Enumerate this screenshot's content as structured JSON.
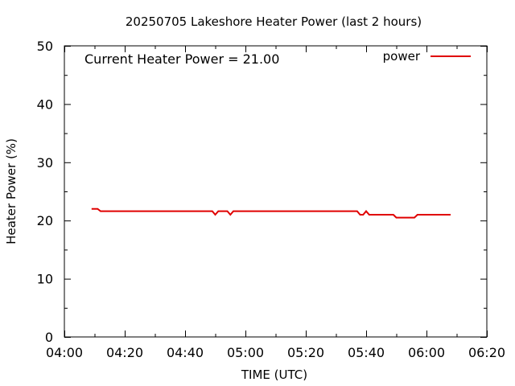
{
  "chart_data": {
    "type": "line",
    "title": "20250705 Lakeshore Heater Power (last 2 hours)",
    "xlabel": "TIME (UTC)",
    "ylabel": "Heater Power (%)",
    "annotation": "Current Heater Power = 21.00",
    "xlim": [
      "04:00",
      "06:20"
    ],
    "ylim": [
      0,
      50
    ],
    "x_ticks": [
      "04:00",
      "04:20",
      "04:40",
      "05:00",
      "05:20",
      "05:40",
      "06:00",
      "06:20"
    ],
    "y_ticks": [
      "0",
      "10",
      "20",
      "30",
      "40",
      "50"
    ],
    "grid": false,
    "legend": "top-right",
    "series": [
      {
        "name": "power",
        "color": "#e00000",
        "points": [
          [
            "04:09",
            22.0
          ],
          [
            "04:11",
            22.0
          ],
          [
            "04:12",
            21.6
          ],
          [
            "04:30",
            21.6
          ],
          [
            "04:49",
            21.6
          ],
          [
            "04:50",
            21.0
          ],
          [
            "04:51",
            21.6
          ],
          [
            "04:54",
            21.6
          ],
          [
            "04:55",
            21.0
          ],
          [
            "04:56",
            21.6
          ],
          [
            "05:20",
            21.6
          ],
          [
            "05:37",
            21.6
          ],
          [
            "05:38",
            21.0
          ],
          [
            "05:39",
            21.0
          ],
          [
            "05:40",
            21.6
          ],
          [
            "05:41",
            21.0
          ],
          [
            "05:49",
            21.0
          ],
          [
            "05:50",
            20.5
          ],
          [
            "05:56",
            20.5
          ],
          [
            "05:57",
            21.0
          ],
          [
            "06:08",
            21.0
          ]
        ]
      }
    ]
  }
}
